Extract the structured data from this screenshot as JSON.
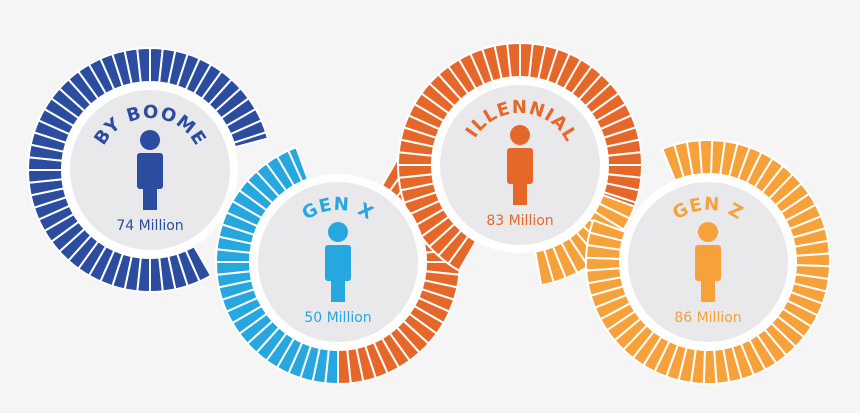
{
  "generations": [
    {
      "name": "BABY BOOMERS",
      "population": "74 Million",
      "color": "#2b4c9f"
    },
    {
      "name": "GEN X",
      "population": "50 Million",
      "color": "#27a7df"
    },
    {
      "name": "MILLENNIALS",
      "population": "83 Million",
      "color": "#e5682a"
    },
    {
      "name": "GEN Z",
      "population": "86 Million",
      "color": "#f7a13a"
    }
  ]
}
